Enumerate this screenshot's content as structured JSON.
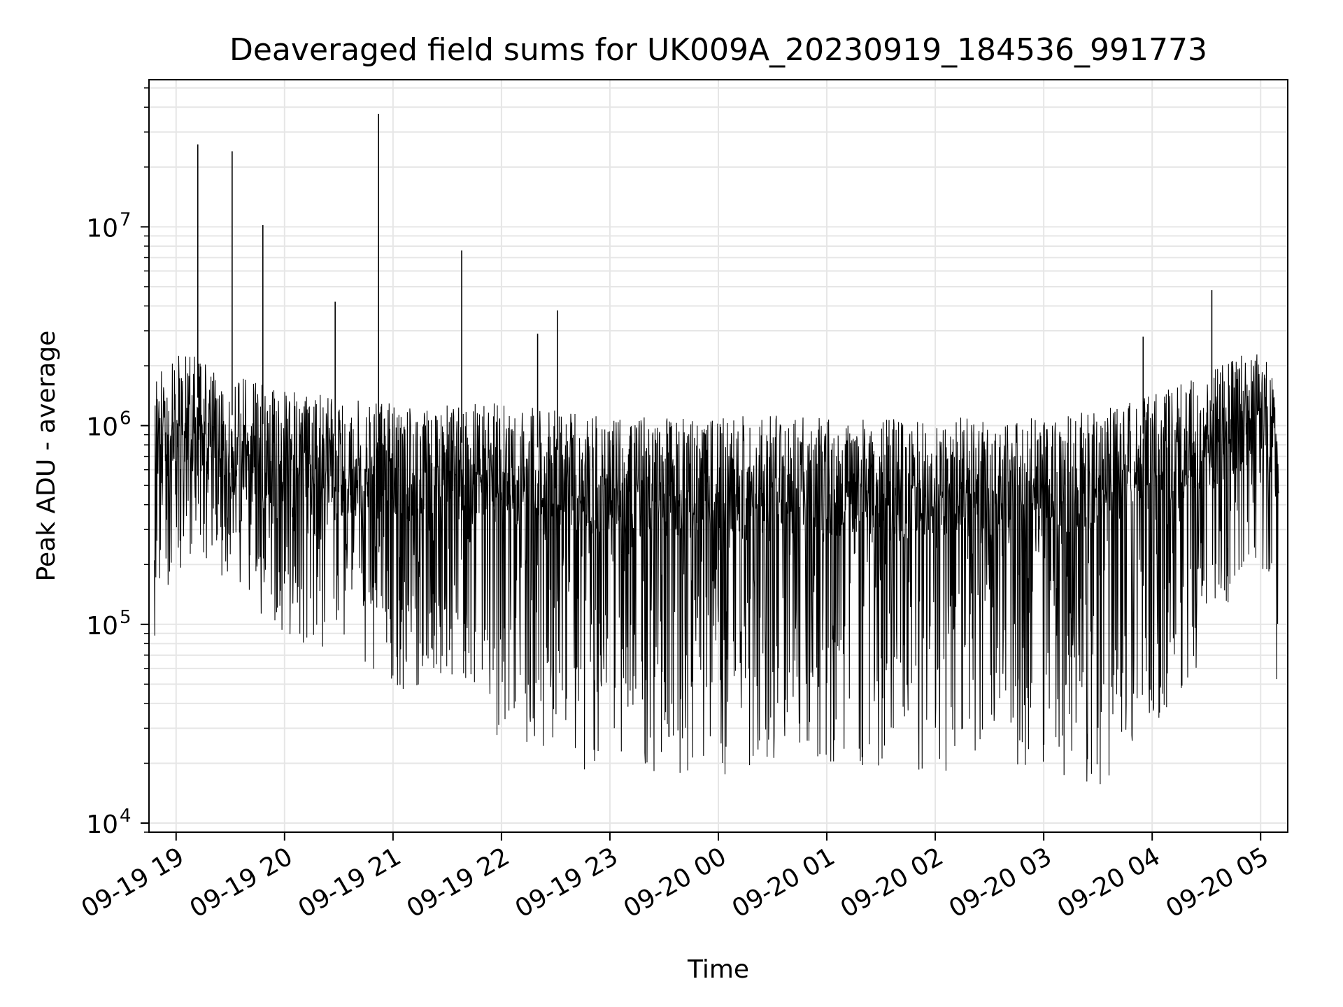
{
  "chart_data": {
    "type": "line",
    "title": "Deaveraged field sums for UK009A_20230919_184536_991773",
    "xlabel": "Time",
    "ylabel": "Peak ADU - average",
    "yscale": "log",
    "ylim": [
      9000,
      55000000
    ],
    "xlim": [
      "2023-09-19 18:45",
      "2023-09-20 05:15"
    ],
    "grid": true,
    "line_color": "#000000",
    "grid_color": "#e6e6e6",
    "x_ticks": [
      "09-19 19",
      "09-19 20",
      "09-19 21",
      "09-19 22",
      "09-19 23",
      "09-20 00",
      "09-20 01",
      "09-20 02",
      "09-20 03",
      "09-20 04",
      "09-20 05"
    ],
    "y_ticks": [
      {
        "base": "10",
        "exp": "4",
        "value": 10000
      },
      {
        "base": "10",
        "exp": "5",
        "value": 100000
      },
      {
        "base": "10",
        "exp": "6",
        "value": 1000000
      },
      {
        "base": "10",
        "exp": "7",
        "value": 10000000
      }
    ],
    "envelope": [
      {
        "t": "2023-09-19 18:48",
        "high": 1800000,
        "low": 40000
      },
      {
        "t": "2023-09-19 19:00",
        "high": 2500000,
        "low": 150000
      },
      {
        "t": "2023-09-19 19:30",
        "high": 1800000,
        "low": 180000
      },
      {
        "t": "2023-09-19 20:00",
        "high": 1500000,
        "low": 70000
      },
      {
        "t": "2023-09-19 20:30",
        "high": 1400000,
        "low": 80000
      },
      {
        "t": "2023-09-19 21:00",
        "high": 1300000,
        "low": 45000
      },
      {
        "t": "2023-09-19 21:30",
        "high": 1300000,
        "low": 55000
      },
      {
        "t": "2023-09-19 22:00",
        "high": 1300000,
        "low": 26000
      },
      {
        "t": "2023-09-19 22:30",
        "high": 1200000,
        "low": 22000
      },
      {
        "t": "2023-09-19 23:00",
        "high": 1100000,
        "low": 14000
      },
      {
        "t": "2023-09-19 23:30",
        "high": 1100000,
        "low": 17000
      },
      {
        "t": "2023-09-20 00:00",
        "high": 1150000,
        "low": 17000
      },
      {
        "t": "2023-09-20 00:30",
        "high": 1150000,
        "low": 20000
      },
      {
        "t": "2023-09-20 01:00",
        "high": 1100000,
        "low": 20000
      },
      {
        "t": "2023-09-20 01:30",
        "high": 1100000,
        "low": 17000
      },
      {
        "t": "2023-09-20 02:00",
        "high": 1100000,
        "low": 18000
      },
      {
        "t": "2023-09-20 02:30",
        "high": 1100000,
        "low": 17000
      },
      {
        "t": "2023-09-20 03:00",
        "high": 1100000,
        "low": 19000
      },
      {
        "t": "2023-09-20 03:30",
        "high": 1200000,
        "low": 14000
      },
      {
        "t": "2023-09-20 04:00",
        "high": 1500000,
        "low": 30000
      },
      {
        "t": "2023-09-20 04:30",
        "high": 1800000,
        "low": 70000
      },
      {
        "t": "2023-09-20 05:00",
        "high": 2700000,
        "low": 200000
      },
      {
        "t": "2023-09-20 05:10",
        "high": 1500000,
        "low": 17000
      }
    ],
    "spikes": [
      {
        "t": "2023-09-19 19:12",
        "value": 26000000
      },
      {
        "t": "2023-09-19 19:31",
        "value": 24000000
      },
      {
        "t": "2023-09-19 19:48",
        "value": 10200000
      },
      {
        "t": "2023-09-19 20:28",
        "value": 4200000
      },
      {
        "t": "2023-09-19 20:52",
        "value": 37000000
      },
      {
        "t": "2023-09-19 21:38",
        "value": 7600000
      },
      {
        "t": "2023-09-19 22:20",
        "value": 2900000
      },
      {
        "t": "2023-09-19 22:31",
        "value": 3800000
      },
      {
        "t": "2023-09-20 03:55",
        "value": 2800000
      },
      {
        "t": "2023-09-20 04:33",
        "value": 4800000
      }
    ]
  }
}
